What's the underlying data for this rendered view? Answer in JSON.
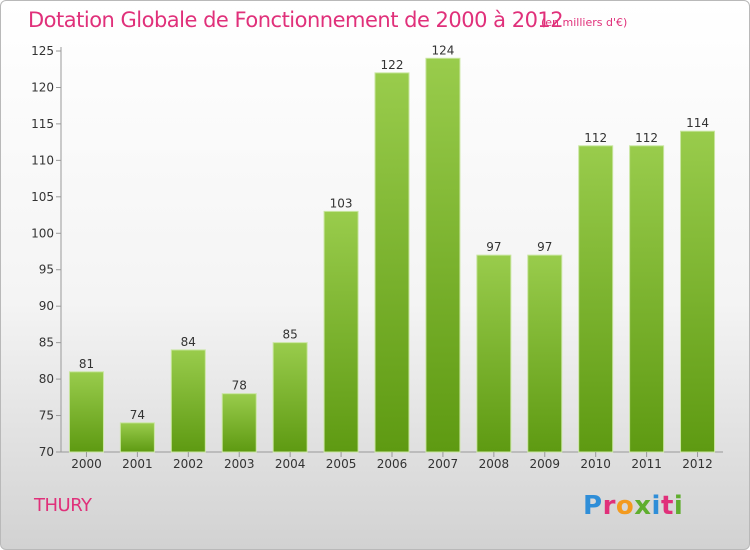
{
  "header": {
    "title": "Dotation Globale de Fonctionnement de 2000 à 2012",
    "unit": "(en milliers d'€)"
  },
  "footer": {
    "place": "THURY",
    "logo_text": "Proxiti"
  },
  "colors": {
    "accent": "#e0307a",
    "bar_light": "#99cc4c",
    "bar_dark": "#5e9a12",
    "logo_letters": [
      "#2f8ed8",
      "#e0307a",
      "#f39a1f",
      "#5fae2e",
      "#2f8ed8",
      "#e0307a",
      "#5fae2e"
    ]
  },
  "chart_data": {
    "type": "bar",
    "title": "Dotation Globale de Fonctionnement de 2000 à 2012",
    "subtitle": "(en milliers d'€)",
    "categories": [
      "2000",
      "2001",
      "2002",
      "2003",
      "2004",
      "2005",
      "2006",
      "2007",
      "2008",
      "2009",
      "2010",
      "2011",
      "2012"
    ],
    "values": [
      81,
      74,
      84,
      78,
      85,
      103,
      122,
      124,
      97,
      97,
      112,
      112,
      114
    ],
    "ylim": [
      70,
      125
    ],
    "yticks": [
      70,
      75,
      80,
      85,
      90,
      95,
      100,
      105,
      110,
      115,
      120,
      125
    ],
    "grid": false,
    "data_labels": true
  }
}
